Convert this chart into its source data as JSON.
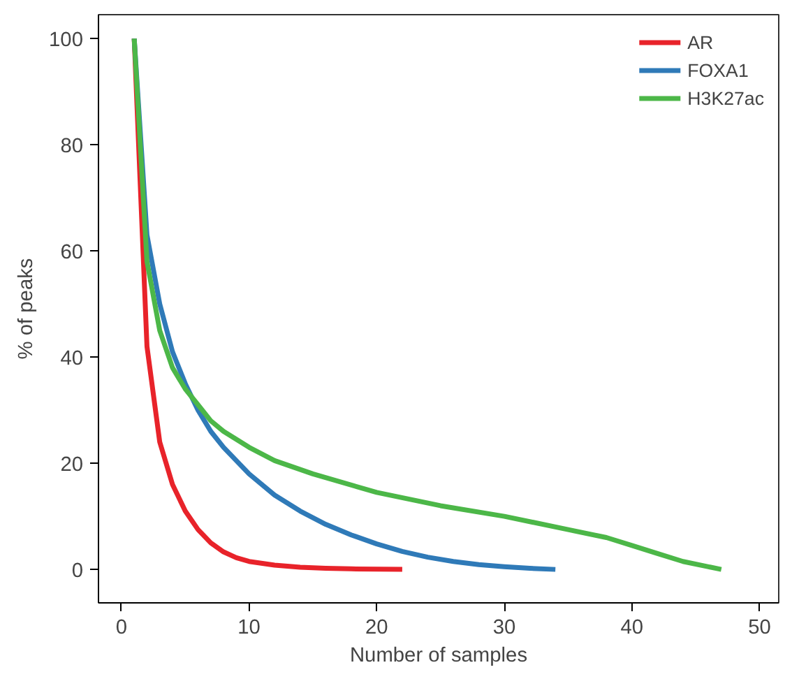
{
  "chart_data": {
    "type": "line",
    "xlabel": "Number of samples",
    "ylabel": "% of peaks",
    "xlim": [
      -1.8,
      51.5
    ],
    "ylim": [
      -6.3,
      104.5
    ],
    "xticks": [
      0,
      10,
      20,
      30,
      40,
      50
    ],
    "yticks": [
      0,
      20,
      40,
      60,
      80,
      100
    ],
    "grid": false,
    "legend": "top right",
    "marker": "none",
    "line_style": "solid",
    "series": [
      {
        "name": "AR",
        "color": "#e8232a",
        "x": [
          1,
          2,
          3,
          4,
          5,
          6,
          7,
          8,
          9,
          10,
          12,
          14,
          16,
          18,
          22
        ],
        "values": [
          100,
          42,
          24,
          16,
          11,
          7.5,
          5,
          3.3,
          2.2,
          1.5,
          0.8,
          0.4,
          0.2,
          0.1,
          0
        ]
      },
      {
        "name": "FOXA1",
        "color": "#2f7ab8",
        "x": [
          1,
          2,
          3,
          4,
          5,
          6,
          7,
          8,
          10,
          12,
          14,
          16,
          18,
          20,
          22,
          24,
          26,
          28,
          30,
          32,
          34
        ],
        "values": [
          100,
          63,
          50,
          41,
          35,
          30,
          26,
          23,
          18,
          14,
          11,
          8.5,
          6.5,
          4.8,
          3.4,
          2.3,
          1.5,
          0.9,
          0.5,
          0.2,
          0
        ]
      },
      {
        "name": "H3K27ac",
        "color": "#4cb748",
        "x": [
          1,
          2,
          3,
          4,
          5,
          6,
          7,
          8,
          10,
          12,
          15,
          20,
          25,
          30,
          35,
          38,
          40,
          42,
          44,
          46,
          47
        ],
        "values": [
          100,
          58,
          45,
          38,
          34,
          31,
          28,
          26,
          23,
          20.5,
          18,
          14.5,
          12,
          10,
          7.5,
          6,
          4.5,
          3,
          1.5,
          0.5,
          0
        ]
      }
    ]
  }
}
